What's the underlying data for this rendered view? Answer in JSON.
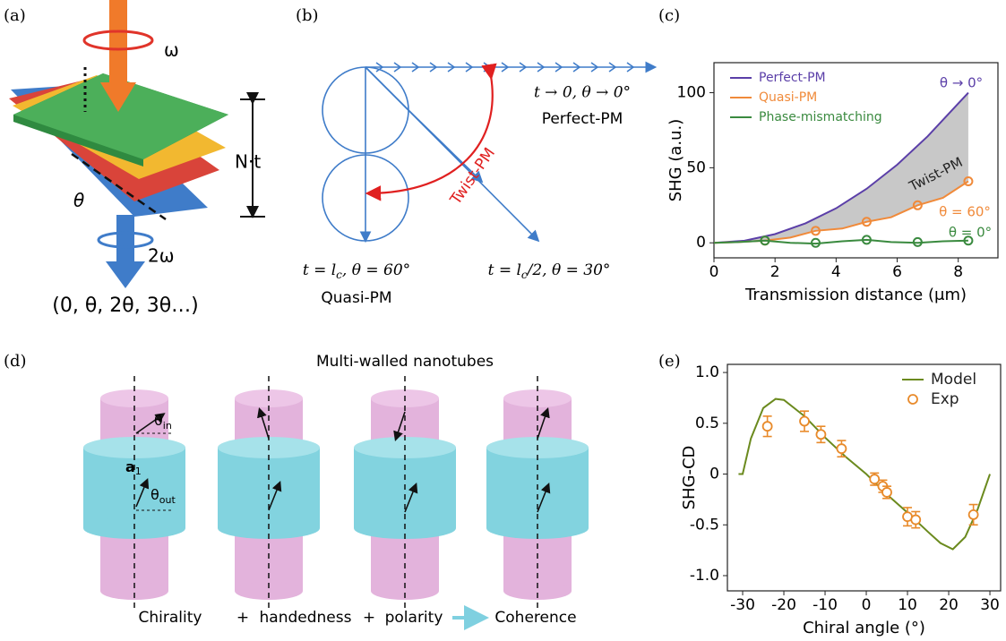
{
  "panels": {
    "a": "(a)",
    "b": "(b)",
    "c": "(c)",
    "d": "(d)",
    "e": "(e)"
  },
  "diagram_a": {
    "omega": "ω",
    "thickness": "N·t",
    "theta": "θ",
    "two_omega": "2ω",
    "sequence": "(0, θ, 2θ, 3θ…)"
  },
  "diagram_b": {
    "perfect_condition": "t → 0, θ → 0°",
    "perfect": "Perfect-PM",
    "twist": "Twist-PM",
    "quasi_condition": {
      "pre": "t = l",
      "sub": "c",
      "post": ", θ = 60°"
    },
    "quasi": "Quasi-PM",
    "half_condition": {
      "pre": "t = l",
      "sub": "c",
      "post": "/2, θ = 30°"
    }
  },
  "diagram_d": {
    "title": "Multi-walled nanotubes",
    "theta_in": {
      "base": "θ",
      "sub": "in"
    },
    "a1": {
      "base": "a",
      "sub": "1"
    },
    "theta_out": {
      "base": "θ",
      "sub": "out"
    },
    "chirality": "Chirality",
    "plus_1": "+",
    "handedness": "handedness",
    "plus_2": "+",
    "polarity": "polarity",
    "coherence": "Coherence"
  },
  "chart_data": [
    {
      "type": "line",
      "xlabel": "Transmission distance (μm)",
      "ylabel": "SHG (a.u.)",
      "xlim": [
        0,
        9.3
      ],
      "ylim": [
        -10,
        120
      ],
      "xticks": [
        0,
        2,
        4,
        6,
        8
      ],
      "yticks": [
        0,
        50,
        100
      ],
      "legend": "upper left",
      "legend_text_colored": true,
      "shade": {
        "between": [
          0,
          1
        ],
        "color": "#c8c8c8"
      },
      "series": [
        {
          "name": "Perfect-PM",
          "color": "#5b3fa8",
          "x": [
            0,
            1,
            2,
            3,
            4,
            5,
            6,
            7,
            8.33
          ],
          "values": [
            0,
            1.4,
            5.8,
            13,
            23,
            36,
            52,
            71,
            100
          ]
        },
        {
          "name": "Quasi-PM",
          "color": "#f08a3a",
          "x": [
            0,
            0.8,
            1.67,
            2.5,
            3.33,
            4.2,
            5,
            5.8,
            6.67,
            7.5,
            8.33
          ],
          "values": [
            0,
            0.5,
            1.5,
            3.5,
            8,
            9.5,
            14,
            17,
            25,
            30,
            41
          ],
          "markers": {
            "x": [
              1.67,
              3.33,
              5,
              6.67,
              8.33
            ],
            "values": [
              1.5,
              8,
              14,
              25,
              41
            ]
          }
        },
        {
          "name": "Phase-mismatching",
          "color": "#3a8a3f",
          "x": [
            0,
            0.8,
            1.67,
            2.5,
            3.33,
            4.2,
            5,
            5.8,
            6.67,
            7.5,
            8.33
          ],
          "values": [
            0,
            0.5,
            1.5,
            0,
            -0.5,
            1,
            2,
            0.5,
            0,
            1,
            1.5
          ],
          "markers": {
            "x": [
              1.67,
              3.33,
              5,
              6.67,
              8.33
            ],
            "values": [
              1.5,
              0,
              2,
              0.5,
              1.5
            ]
          }
        }
      ],
      "annotations": [
        {
          "text": "θ → 0°",
          "color": "#5b3fa8"
        },
        {
          "text": "Twist-PM",
          "color": "#222222"
        },
        {
          "text": "θ = 60°",
          "color": "#f08a3a"
        },
        {
          "text": "θ = 0°",
          "color": "#3a8a3f"
        }
      ]
    },
    {
      "type": "scatter",
      "xlabel": "Chiral angle (°)",
      "ylabel": "SHG-CD",
      "xlim": [
        -33.7,
        32.6
      ],
      "ylim": [
        -1.15,
        1.08
      ],
      "xticks": [
        -30,
        -20,
        -10,
        0,
        10,
        20,
        30
      ],
      "yticks": [
        {
          "value": 1,
          "label": "1.0"
        },
        0.5,
        0,
        -0.5,
        {
          "value": -1,
          "label": "-1.0"
        }
      ],
      "legend": "upper right",
      "series": [
        {
          "name": "Model",
          "type": "line",
          "color": "#6b8a1e",
          "x": [
            -31,
            -30,
            -28,
            -25,
            -22,
            -20,
            -15,
            -10,
            -5,
            0,
            5,
            10,
            15,
            18,
            21,
            24,
            27,
            30
          ],
          "values": [
            0,
            0,
            0.35,
            0.65,
            0.74,
            0.73,
            0.57,
            0.36,
            0.17,
            0,
            -0.2,
            -0.38,
            -0.57,
            -0.68,
            -0.74,
            -0.62,
            -0.35,
            0
          ]
        },
        {
          "name": "Exp",
          "type": "scatter",
          "color": "#e88a2a",
          "x": [
            -24,
            -15,
            -11,
            -6,
            2,
            4,
            5,
            10,
            12,
            26
          ],
          "values": [
            0.47,
            0.52,
            0.39,
            0.25,
            -0.05,
            -0.12,
            -0.18,
            -0.42,
            -0.45,
            -0.4
          ],
          "errors": [
            0.1,
            0.1,
            0.08,
            0.08,
            0.06,
            0.06,
            0.06,
            0.09,
            0.08,
            0.1
          ]
        }
      ]
    }
  ]
}
